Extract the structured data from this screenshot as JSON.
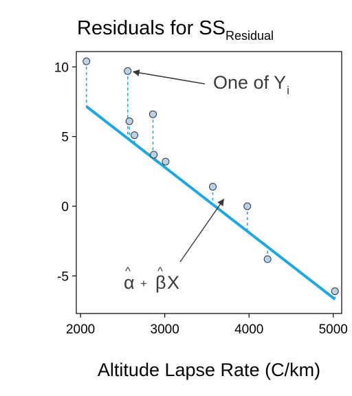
{
  "chart_data": {
    "type": "scatter",
    "title": "Residuals for SS",
    "title_subscript": "Residual",
    "xlabel": "Altitude Lapse Rate (C/km)",
    "ylabel": "",
    "xlim": [
      1950,
      5100
    ],
    "ylim": [
      -7.7,
      11.1
    ],
    "x_ticks": [
      2000,
      3000,
      4000,
      5000
    ],
    "x_tick_labels": [
      "2000",
      "3000",
      "4000",
      "5000"
    ],
    "y_ticks": [
      10,
      5,
      0,
      -5
    ],
    "y_tick_labels": [
      "10",
      "5",
      "0",
      "-5"
    ],
    "grid": false,
    "points": [
      {
        "x": 2070,
        "y": 10.4
      },
      {
        "x": 2560,
        "y": 9.7
      },
      {
        "x": 2580,
        "y": 6.1
      },
      {
        "x": 2640,
        "y": 5.1
      },
      {
        "x": 2860,
        "y": 6.6
      },
      {
        "x": 2870,
        "y": 3.7
      },
      {
        "x": 3010,
        "y": 3.2
      },
      {
        "x": 3570,
        "y": 1.4
      },
      {
        "x": 3980,
        "y": 0.0
      },
      {
        "x": 4220,
        "y": -3.8
      },
      {
        "x": 5020,
        "y": -6.1
      }
    ],
    "fit_line": {
      "intercept": 16.87,
      "slope": -0.00469,
      "x_from": 2070,
      "x_to": 5020
    },
    "colors": {
      "fit": "#1da8e0",
      "point_fill": "#b8d3e9",
      "point_stroke": "#333333",
      "annotation": "#3a3a3a"
    },
    "annotations": {
      "observed": {
        "text": "One of Y",
        "subscript": "i",
        "target_x": 2560,
        "target_y": 9.7
      },
      "fitted": {
        "alpha": "α",
        "hat": "^",
        "plus": "+",
        "beta": "β",
        "var": "X",
        "target_x": 3700,
        "target_y": 0.5
      }
    }
  }
}
